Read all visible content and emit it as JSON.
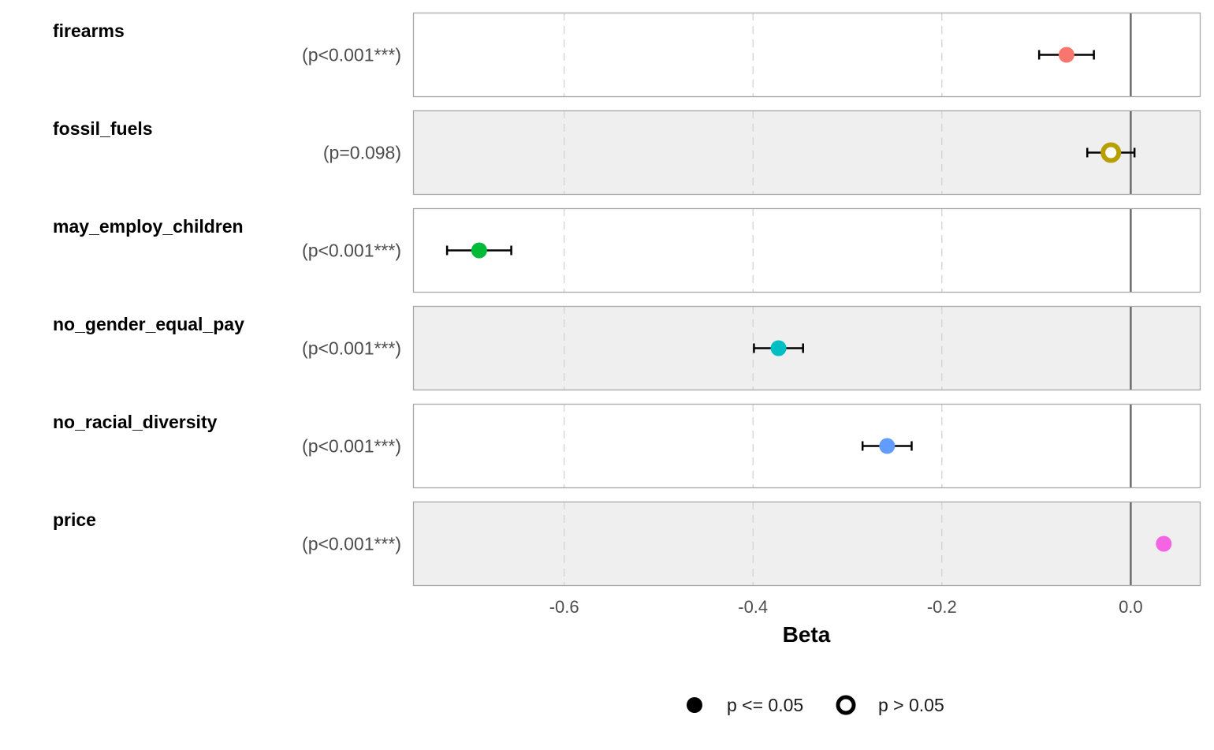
{
  "chart_data": {
    "type": "scatter",
    "xlabel": "Beta",
    "xlim": [
      -0.76,
      0.074
    ],
    "x_ticks": [
      -0.6,
      -0.4,
      -0.2,
      0.0
    ],
    "x_tick_labels": [
      "-0.6",
      "-0.4",
      "-0.2",
      "0.0"
    ],
    "reference_line": 0.0,
    "grid": "dashed vertical",
    "legend_position": "bottom",
    "legend": [
      {
        "label": "p <= 0.05",
        "marker": "filled"
      },
      {
        "label": "p > 0.05",
        "marker": "hollow"
      }
    ],
    "rows": [
      {
        "label": "firearms",
        "p_text": "(p<0.001***)",
        "beta": -0.068,
        "ci_low": -0.097,
        "ci_high": -0.039,
        "significant": true,
        "color": "#F8766D",
        "band": "#FFFFFF"
      },
      {
        "label": "fossil_fuels",
        "p_text": "(p=0.098)",
        "beta": -0.021,
        "ci_low": -0.046,
        "ci_high": 0.004,
        "significant": false,
        "color": "#B79F00",
        "band": "#EFEFEF"
      },
      {
        "label": "may_employ_children",
        "p_text": "(p<0.001***)",
        "beta": -0.69,
        "ci_low": -0.724,
        "ci_high": -0.656,
        "significant": true,
        "color": "#00BA38",
        "band": "#FFFFFF"
      },
      {
        "label": "no_gender_equal_pay",
        "p_text": "(p<0.001***)",
        "beta": -0.373,
        "ci_low": -0.399,
        "ci_high": -0.347,
        "significant": true,
        "color": "#00BFC4",
        "band": "#EFEFEF"
      },
      {
        "label": "no_racial_diversity",
        "p_text": "(p<0.001***)",
        "beta": -0.258,
        "ci_low": -0.284,
        "ci_high": -0.232,
        "significant": true,
        "color": "#619CFF",
        "band": "#FFFFFF"
      },
      {
        "label": "price",
        "p_text": "(p<0.001***)",
        "beta": 0.035,
        "ci_low": 0.035,
        "ci_high": 0.035,
        "significant": true,
        "color": "#F564E3",
        "band": "#EFEFEF"
      }
    ]
  }
}
